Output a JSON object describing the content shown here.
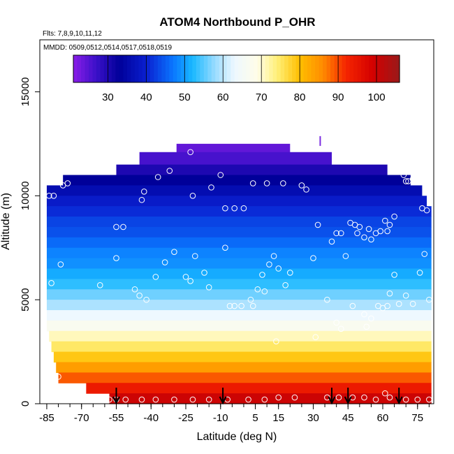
{
  "chart_data": {
    "type": "heatmap",
    "title": "ATOM4 Northbound P_OHR",
    "subtitle_flights": "Flts: 7,8,9,10,11,12",
    "subtitle_dates": "MMDD: 0509,0512,0514,0517,0518,0519",
    "xlabel": "Latitude (deg N)",
    "ylabel": "Altitude (m)",
    "xlim": [
      -88,
      82
    ],
    "ylim": [
      0,
      17500
    ],
    "x_ticks": [
      -85,
      -70,
      -55,
      -40,
      -25,
      -10,
      5,
      15,
      30,
      45,
      60,
      75
    ],
    "x_minor_step": 5,
    "y_ticks": [
      0,
      5000,
      10000,
      15000
    ],
    "colorbar": {
      "range": [
        21,
        106
      ],
      "ticks": [
        30,
        40,
        50,
        60,
        70,
        80,
        90,
        100
      ],
      "stops": [
        [
          21,
          "#8a1de8"
        ],
        [
          27,
          "#3a10c8"
        ],
        [
          33,
          "#000099"
        ],
        [
          40,
          "#0a1fd0"
        ],
        [
          47,
          "#0a76ff"
        ],
        [
          52,
          "#18b8ff"
        ],
        [
          58,
          "#9bdcff"
        ],
        [
          63,
          "#eef8ff"
        ],
        [
          69,
          "#fffde8"
        ],
        [
          74,
          "#fff07a"
        ],
        [
          80,
          "#ffbf00"
        ],
        [
          86,
          "#ff8c00"
        ],
        [
          92,
          "#f52500"
        ],
        [
          99,
          "#d40000"
        ],
        [
          106,
          "#991a1a"
        ]
      ]
    },
    "profile_bands": [
      {
        "alt": [
          12100,
          12500
        ],
        "lat": [
          -29,
          20
        ],
        "value": 24
      },
      {
        "alt": [
          11500,
          12100
        ],
        "lat": [
          -45,
          38
        ],
        "value": 26
      },
      {
        "alt": [
          11000,
          11500
        ],
        "lat": [
          -55,
          62
        ],
        "value": 30
      },
      {
        "alt": [
          10500,
          11000
        ],
        "lat": [
          -78,
          72
        ],
        "value": 33
      },
      {
        "alt": [
          10000,
          10500
        ],
        "lat": [
          -85,
          77
        ],
        "value": 36
      },
      {
        "alt": [
          9500,
          10000
        ],
        "lat": [
          -85,
          79
        ],
        "value": 39
      },
      {
        "alt": [
          9000,
          9500
        ],
        "lat": [
          -85,
          81
        ],
        "value": 41
      },
      {
        "alt": [
          8500,
          9000
        ],
        "lat": [
          -85,
          81
        ],
        "value": 43
      },
      {
        "alt": [
          8000,
          8500
        ],
        "lat": [
          -85,
          81
        ],
        "value": 44
      },
      {
        "alt": [
          7500,
          8000
        ],
        "lat": [
          -85,
          81
        ],
        "value": 46
      },
      {
        "alt": [
          7000,
          7500
        ],
        "lat": [
          -85,
          81
        ],
        "value": 48
      },
      {
        "alt": [
          6500,
          7000
        ],
        "lat": [
          -85,
          81
        ],
        "value": 49
      },
      {
        "alt": [
          6000,
          6500
        ],
        "lat": [
          -85,
          81
        ],
        "value": 51
      },
      {
        "alt": [
          5500,
          6000
        ],
        "lat": [
          -85,
          81
        ],
        "value": 53
      },
      {
        "alt": [
          5000,
          5500
        ],
        "lat": [
          -85,
          81
        ],
        "value": 56
      },
      {
        "alt": [
          4500,
          5000
        ],
        "lat": [
          -85,
          81
        ],
        "value": 59
      },
      {
        "alt": [
          4000,
          4500
        ],
        "lat": [
          -85,
          81
        ],
        "value": 63
      },
      {
        "alt": [
          3500,
          4000
        ],
        "lat": [
          -85,
          81
        ],
        "value": 67
      },
      {
        "alt": [
          3000,
          3500
        ],
        "lat": [
          -84,
          81
        ],
        "value": 71
      },
      {
        "alt": [
          2500,
          3000
        ],
        "lat": [
          -83,
          81
        ],
        "value": 75
      },
      {
        "alt": [
          2000,
          2500
        ],
        "lat": [
          -82,
          81
        ],
        "value": 79
      },
      {
        "alt": [
          1500,
          2000
        ],
        "lat": [
          -81,
          81
        ],
        "value": 84
      },
      {
        "alt": [
          1000,
          1500
        ],
        "lat": [
          -80,
          81
        ],
        "value": 89
      },
      {
        "alt": [
          500,
          1000
        ],
        "lat": [
          -68,
          81
        ],
        "value": 94
      },
      {
        "alt": [
          0,
          500
        ],
        "lat": [
          -58,
          81
        ],
        "value": 100
      }
    ],
    "observation_points": [
      [
        -75,
        11200
      ],
      [
        -72,
        11300
      ],
      [
        -70,
        11300
      ],
      [
        -66,
        11500
      ],
      [
        -84,
        10000
      ],
      [
        -82,
        10000
      ],
      [
        -78,
        10500
      ],
      [
        -76,
        10600
      ],
      [
        -50,
        11700
      ],
      [
        -43,
        10200
      ],
      [
        -44,
        9800
      ],
      [
        -37,
        10900
      ],
      [
        -32,
        11200
      ],
      [
        -23,
        12100
      ],
      [
        -22,
        10000
      ],
      [
        -14,
        10400
      ],
      [
        -10,
        11000
      ],
      [
        -8,
        9400
      ],
      [
        -4,
        9400
      ],
      [
        0,
        9400
      ],
      [
        4,
        10600
      ],
      [
        10,
        10600
      ],
      [
        17,
        10600
      ],
      [
        25,
        10500
      ],
      [
        27,
        10300
      ],
      [
        32,
        8600
      ],
      [
        38,
        7800
      ],
      [
        40,
        8200
      ],
      [
        42,
        8200
      ],
      [
        46,
        8700
      ],
      [
        48,
        8600
      ],
      [
        49,
        8200
      ],
      [
        50,
        8500
      ],
      [
        52,
        8000
      ],
      [
        54,
        8400
      ],
      [
        55,
        7900
      ],
      [
        57,
        8200
      ],
      [
        59,
        8300
      ],
      [
        61,
        8800
      ],
      [
        62,
        8300
      ],
      [
        63,
        8600
      ],
      [
        65,
        9000
      ],
      [
        69,
        11000
      ],
      [
        70,
        10700
      ],
      [
        71,
        10700
      ],
      [
        73,
        10800
      ],
      [
        77,
        9400
      ],
      [
        79,
        9300
      ],
      [
        -55,
        8500
      ],
      [
        -52,
        8500
      ],
      [
        -62,
        5700
      ],
      [
        -55,
        7000
      ],
      [
        -47,
        5500
      ],
      [
        -45,
        5200
      ],
      [
        -42,
        5000
      ],
      [
        -38,
        6100
      ],
      [
        -34,
        6800
      ],
      [
        -30,
        7300
      ],
      [
        -25,
        6100
      ],
      [
        -23,
        5900
      ],
      [
        -21,
        7100
      ],
      [
        -17,
        6300
      ],
      [
        -15,
        5600
      ],
      [
        -8,
        7500
      ],
      [
        -6,
        4700
      ],
      [
        -4,
        4700
      ],
      [
        3,
        5000
      ],
      [
        6,
        5500
      ],
      [
        8,
        6200
      ],
      [
        9,
        5400
      ],
      [
        11,
        6700
      ],
      [
        13,
        7100
      ],
      [
        15,
        6500
      ],
      [
        18,
        5700
      ],
      [
        20,
        6300
      ],
      [
        30,
        7000
      ],
      [
        31,
        3200
      ],
      [
        36,
        5000
      ],
      [
        40,
        3900
      ],
      [
        42,
        3600
      ],
      [
        44,
        7100
      ],
      [
        47,
        4700
      ],
      [
        52,
        4300
      ],
      [
        53,
        3700
      ],
      [
        55,
        4100
      ],
      [
        58,
        4700
      ],
      [
        60,
        4600
      ],
      [
        62,
        4700
      ],
      [
        63,
        5300
      ],
      [
        65,
        6200
      ],
      [
        67,
        4800
      ],
      [
        70,
        5200
      ],
      [
        73,
        4800
      ],
      [
        76,
        6300
      ],
      [
        78,
        7200
      ],
      [
        80,
        5000
      ],
      [
        -80,
        1300
      ],
      [
        -58,
        200
      ],
      [
        -55,
        200
      ],
      [
        -51,
        200
      ],
      [
        -44,
        200
      ],
      [
        -38,
        200
      ],
      [
        -30,
        200
      ],
      [
        -22,
        200
      ],
      [
        -15,
        200
      ],
      [
        -7,
        200
      ],
      [
        2,
        200
      ],
      [
        9,
        200
      ],
      [
        15,
        300
      ],
      [
        22,
        300
      ],
      [
        36,
        300
      ],
      [
        41,
        300
      ],
      [
        47,
        300
      ],
      [
        52,
        300
      ],
      [
        57,
        200
      ],
      [
        61,
        500
      ],
      [
        63,
        300
      ],
      [
        70,
        200
      ],
      [
        75,
        200
      ],
      [
        80,
        200
      ],
      [
        -87,
        7000
      ],
      [
        -83,
        5800
      ],
      [
        -79,
        6700
      ],
      [
        14,
        3000
      ],
      [
        -1,
        4700
      ],
      [
        4,
        4700
      ]
    ],
    "arrows_lat": [
      -55,
      -9,
      38,
      45,
      67
    ],
    "marker_top": {
      "lat": 33,
      "alt": 12600
    }
  }
}
